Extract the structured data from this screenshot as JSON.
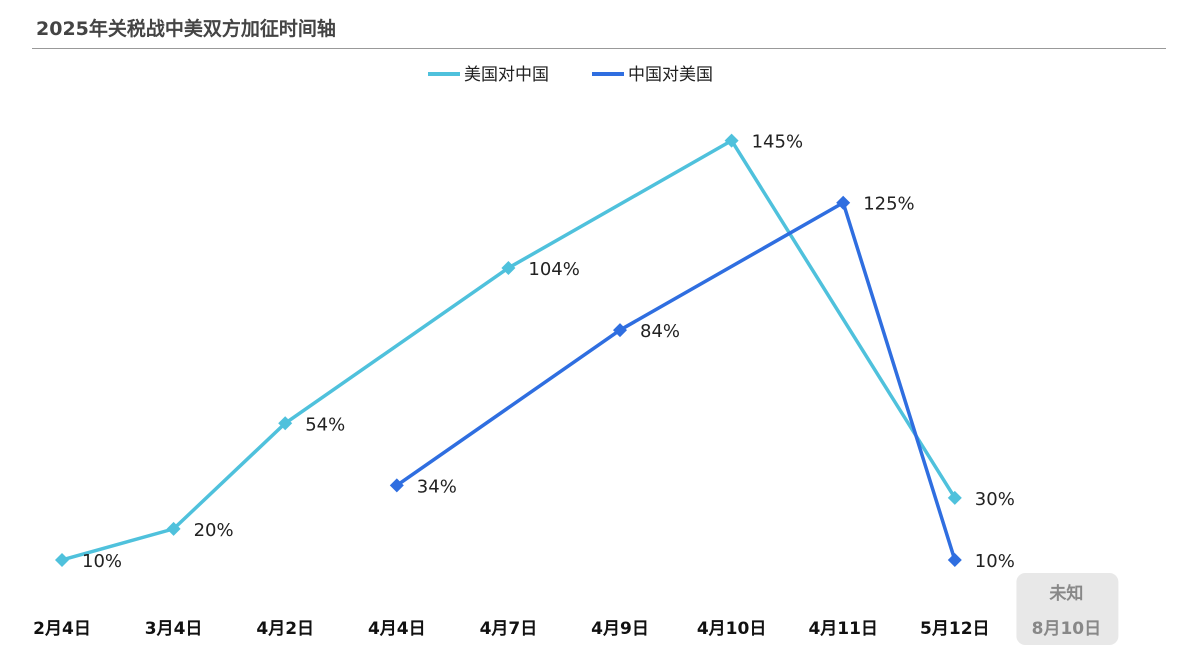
{
  "chart_data": {
    "type": "line",
    "title": "2025年关税战中美双方加征时间轴",
    "categories": [
      "2月4日",
      "3月4日",
      "4月2日",
      "4月4日",
      "4月7日",
      "4月9日",
      "4月10日",
      "4月11日",
      "5月12日"
    ],
    "extra_category": {
      "top": "未知",
      "bottom": "8月10日"
    },
    "ylim": [
      0,
      160
    ],
    "grid": false,
    "legend_position": "top-center",
    "series": [
      {
        "name": "美国对中国",
        "color": "#4fc1dc",
        "points": [
          {
            "x": "2月4日",
            "y": 10,
            "label": "10%"
          },
          {
            "x": "3月4日",
            "y": 20,
            "label": "20%"
          },
          {
            "x": "4月2日",
            "y": 54,
            "label": "54%"
          },
          {
            "x": "4月7日",
            "y": 104,
            "label": "104%"
          },
          {
            "x": "4月10日",
            "y": 145,
            "label": "145%"
          },
          {
            "x": "5月12日",
            "y": 30,
            "label": "30%"
          }
        ]
      },
      {
        "name": "中国对美国",
        "color": "#2f6ee0",
        "points": [
          {
            "x": "4月4日",
            "y": 34,
            "label": "34%"
          },
          {
            "x": "4月9日",
            "y": 84,
            "label": "84%"
          },
          {
            "x": "4月11日",
            "y": 125,
            "label": "125%"
          },
          {
            "x": "5月12日",
            "y": 10,
            "label": "10%"
          }
        ]
      }
    ]
  }
}
